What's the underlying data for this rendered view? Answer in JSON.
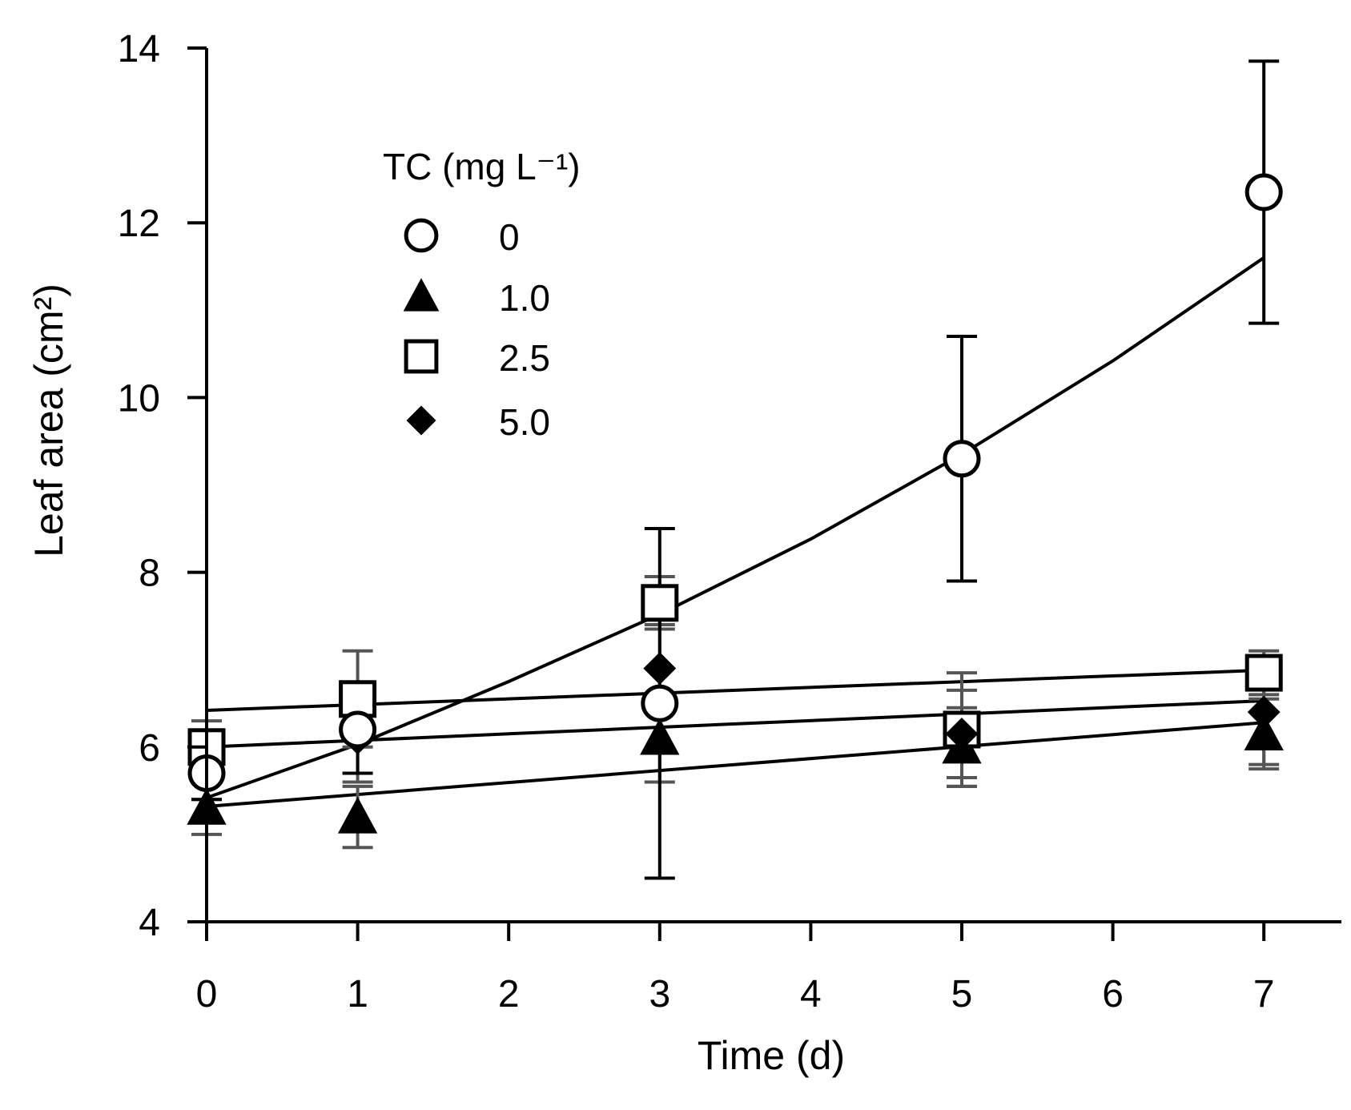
{
  "chart_data": {
    "type": "scatter",
    "title": "",
    "xlabel": "Time (d)",
    "ylabel": "Leaf area (cm²)",
    "xlim": [
      0,
      7.4
    ],
    "ylim": [
      4,
      14
    ],
    "xticks": [
      0,
      1,
      2,
      3,
      4,
      5,
      6,
      7
    ],
    "yticks": [
      4,
      6,
      8,
      10,
      12,
      14
    ],
    "grid": false,
    "legend": {
      "title": "TC (mg L⁻¹)",
      "position": "top-left"
    },
    "series": [
      {
        "name": "0",
        "marker": "open-circle",
        "error_color": "#000000",
        "x": [
          0,
          1,
          3,
          5,
          7
        ],
        "y": [
          5.7,
          6.2,
          6.5,
          9.3,
          12.35
        ],
        "error": [
          0.3,
          0.5,
          2.0,
          1.4,
          1.5
        ],
        "fit": {
          "kind": "exponential",
          "x": [
            0,
            1,
            2,
            3,
            4,
            5,
            6,
            7
          ],
          "y": [
            5.42,
            6.03,
            6.75,
            7.52,
            8.38,
            9.35,
            10.42,
            11.6
          ]
        }
      },
      {
        "name": "1.0",
        "marker": "filled-triangle",
        "error_color": "#555555",
        "x": [
          0,
          1,
          3,
          5,
          7
        ],
        "y": [
          5.3,
          5.2,
          6.1,
          6.0,
          6.15
        ],
        "error": [
          0.3,
          0.35,
          0.5,
          0.45,
          0.4
        ],
        "fit": {
          "kind": "linear",
          "x": [
            0,
            7
          ],
          "y": [
            5.32,
            6.28
          ]
        }
      },
      {
        "name": "2.5",
        "marker": "open-square",
        "error_color": "#555555",
        "x": [
          0,
          1,
          3,
          5,
          7
        ],
        "y": [
          6.0,
          6.55,
          7.65,
          6.2,
          6.85
        ],
        "error": [
          0.3,
          0.55,
          0.3,
          0.65,
          0.25
        ],
        "fit": {
          "kind": "linear",
          "x": [
            0,
            7
          ],
          "y": [
            6.42,
            6.88
          ]
        }
      },
      {
        "name": "5.0",
        "marker": "filled-diamond",
        "error_color": "#555555",
        "x": [
          0,
          1,
          3,
          5,
          7
        ],
        "y": [
          5.7,
          6.1,
          6.9,
          6.15,
          6.4
        ],
        "error": [
          0.3,
          0.5,
          0.5,
          0.5,
          0.6
        ],
        "fit": {
          "kind": "linear",
          "x": [
            0,
            7
          ],
          "y": [
            6.0,
            6.53
          ]
        }
      }
    ]
  }
}
